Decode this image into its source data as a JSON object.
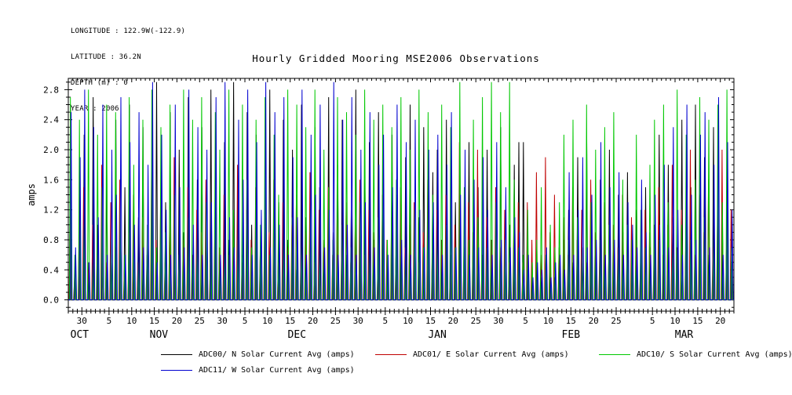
{
  "page": {
    "background": "#ffffff"
  },
  "header": {
    "longitude": "LONGITUDE : 122.9W(-122.9)",
    "latitude": "LATITUDE : 36.2N",
    "depth": "DEPTH (m) : 0",
    "year": "YEAR : 2006"
  },
  "title": "Hourly Gridded Mooring MSE2006 Observations",
  "chart_data": {
    "type": "line",
    "title": "Hourly Gridded Mooring MSE2006 Observations",
    "xlabel": "",
    "ylabel": "amps",
    "ylim": [
      -0.15,
      2.95
    ],
    "yticks": [
      0.0,
      0.4,
      0.8,
      1.2,
      1.6,
      2.0,
      2.4,
      2.8
    ],
    "ytick_labels": [
      "0.0",
      "0.4",
      "0.8",
      "1.2",
      "1.6",
      "2.0",
      "2.4",
      "2.8"
    ],
    "grid": false,
    "legend_position": "bottom",
    "x_domain_days": [
      0,
      147
    ],
    "x_axis_note": "daily solar spikes, late OCT through MAR, year label 2006",
    "xticks": [
      {
        "day": 3,
        "label": "30"
      },
      {
        "day": 9,
        "label": "5"
      },
      {
        "day": 14,
        "label": "10"
      },
      {
        "day": 19,
        "label": "15"
      },
      {
        "day": 24,
        "label": "20"
      },
      {
        "day": 29,
        "label": "25"
      },
      {
        "day": 34,
        "label": "30"
      },
      {
        "day": 39,
        "label": "5"
      },
      {
        "day": 44,
        "label": "10"
      },
      {
        "day": 49,
        "label": "15"
      },
      {
        "day": 54,
        "label": "20"
      },
      {
        "day": 59,
        "label": "25"
      },
      {
        "day": 64,
        "label": "30"
      },
      {
        "day": 70,
        "label": "5"
      },
      {
        "day": 75,
        "label": "10"
      },
      {
        "day": 80,
        "label": "15"
      },
      {
        "day": 85,
        "label": "20"
      },
      {
        "day": 90,
        "label": "25"
      },
      {
        "day": 95,
        "label": "30"
      },
      {
        "day": 101,
        "label": "5"
      },
      {
        "day": 106,
        "label": "10"
      },
      {
        "day": 111,
        "label": "15"
      },
      {
        "day": 116,
        "label": "20"
      },
      {
        "day": 121,
        "label": "25"
      },
      {
        "day": 129,
        "label": "5"
      },
      {
        "day": 134,
        "label": "10"
      },
      {
        "day": 139,
        "label": "15"
      },
      {
        "day": 144,
        "label": "20"
      }
    ],
    "months": [
      {
        "label": "OCT",
        "center_day": 2.5
      },
      {
        "label": "NOV",
        "center_day": 20
      },
      {
        "label": "DEC",
        "center_day": 50.5
      },
      {
        "label": "JAN",
        "center_day": 81.5
      },
      {
        "label": "FEB",
        "center_day": 111
      },
      {
        "label": "MAR",
        "center_day": 136
      }
    ],
    "series": [
      {
        "name": "ADC00/ N Solar Current Avg (amps)",
        "color": "#000000",
        "daily_peaks": [
          2.6,
          0.4,
          1.7,
          2.2,
          0.5,
          2.7,
          1.0,
          0.3,
          1.8,
          0.6,
          2.4,
          0.8,
          1.5,
          2.6,
          0.4,
          1.1,
          2.3,
          0.7,
          1.9,
          2.9,
          0.5,
          1.3,
          2.5,
          0.6,
          2.0,
          0.9,
          2.7,
          0.4,
          1.6,
          2.3,
          0.7,
          2.8,
          1.2,
          0.5,
          2.1,
          0.8,
          2.9,
          1.4,
          0.6,
          2.5,
          1.0,
          2.2,
          0.5,
          1.7,
          2.8,
          0.6,
          1.3,
          2.4,
          0.8,
          2.0,
          0.4,
          2.6,
          1.1,
          0.7,
          2.3,
          1.5,
          0.5,
          2.7,
          0.9,
          1.8,
          2.4,
          0.6,
          1.2,
          2.8,
          0.5,
          1.6,
          2.1,
          0.8,
          2.5,
          1.0,
          0.5,
          2.2,
          1.4,
          0.6,
          1.9,
          2.6,
          0.7,
          1.1,
          2.3,
          0.5,
          1.7,
          2.0,
          0.8,
          2.4,
          0.6,
          1.3,
          1.9,
          0.5,
          2.1,
          0.9,
          1.5,
          0.6,
          2.0,
          0.8,
          1.2,
          2.3,
          0.5,
          1.0,
          1.8,
          2.1,
          2.1,
          0.4,
          0.3,
          0.5,
          0.3,
          0.6,
          0.4,
          0.3,
          0.5,
          0.8,
          1.2,
          0.5,
          1.9,
          0.7,
          2.1,
          1.0,
          0.6,
          1.6,
          0.8,
          2.0,
          0.5,
          1.4,
          0.9,
          1.7,
          0.6,
          1.2,
          0.8,
          1.5,
          0.7,
          1.0,
          2.2,
          0.6,
          1.8,
          1.1,
          0.7,
          2.4,
          0.9,
          1.5,
          2.6,
          0.8,
          1.9,
          0.6,
          2.3,
          1.2,
          0.8,
          2.0,
          0.5
        ]
      },
      {
        "name": "ADC01/ E Solar Current Avg (amps)",
        "color": "#c00000",
        "daily_peaks": [
          1.2,
          0.3,
          0.8,
          1.5,
          0.4,
          1.0,
          0.6,
          1.8,
          0.5,
          1.3,
          0.7,
          1.6,
          0.4,
          0.9,
          1.4,
          0.5,
          1.1,
          0.6,
          1.7,
          0.8,
          1.3,
          0.5,
          1.0,
          1.9,
          0.4,
          0.8,
          1.5,
          0.6,
          1.2,
          0.9,
          1.6,
          0.5,
          1.1,
          0.7,
          1.4,
          0.6,
          1.0,
          1.8,
          0.5,
          1.2,
          0.8,
          1.5,
          0.6,
          1.1,
          0.9,
          1.6,
          0.5,
          1.3,
          0.7,
          1.0,
          1.4,
          0.6,
          0.9,
          1.7,
          0.5,
          1.2,
          0.8,
          1.5,
          0.6,
          1.1,
          0.7,
          1.3,
          0.5,
          1.0,
          1.6,
          0.6,
          1.2,
          0.9,
          0.5,
          1.4,
          0.8,
          1.1,
          0.6,
          1.5,
          0.7,
          1.0,
          1.3,
          0.5,
          0.9,
          1.6,
          0.6,
          1.2,
          0.8,
          1.4,
          0.5,
          1.0,
          2.1,
          0.7,
          1.3,
          0.9,
          2.0,
          0.6,
          1.1,
          0.8,
          1.5,
          0.7,
          1.2,
          0.5,
          0.9,
          1.3,
          0.5,
          1.3,
          0.8,
          1.7,
          0.6,
          1.9,
          0.9,
          1.4,
          0.7,
          1.1,
          0.6,
          1.5,
          0.8,
          1.2,
          0.5,
          1.6,
          0.9,
          0.7,
          1.3,
          0.6,
          1.0,
          0.7,
          1.4,
          0.6,
          1.1,
          0.8,
          0.5,
          1.2,
          0.9,
          0.7,
          1.5,
          0.6,
          1.0,
          1.8,
          0.7,
          1.2,
          0.8,
          2.0,
          0.6,
          1.4,
          0.9,
          1.6,
          0.7,
          1.1,
          2.0,
          0.8,
          1.2
        ]
      },
      {
        "name": "ADC10/ S Solar Current Avg (amps)",
        "color": "#00c800",
        "daily_peaks": [
          2.7,
          0.6,
          2.4,
          1.0,
          2.8,
          0.5,
          2.2,
          1.5,
          2.6,
          0.8,
          2.5,
          1.2,
          0.6,
          2.7,
          1.8,
          0.5,
          2.4,
          1.0,
          2.8,
          0.7,
          2.3,
          0.9,
          2.6,
          1.4,
          0.6,
          2.8,
          1.1,
          2.4,
          0.8,
          2.7,
          1.3,
          0.7,
          2.5,
          2.0,
          0.6,
          2.8,
          1.2,
          0.8,
          2.6,
          1.6,
          0.7,
          2.4,
          1.0,
          2.7,
          0.6,
          2.2,
          1.4,
          0.8,
          2.8,
          1.1,
          2.6,
          0.7,
          2.3,
          1.2,
          2.8,
          0.6,
          2.0,
          1.5,
          0.8,
          2.7,
          1.0,
          2.5,
          0.7,
          2.2,
          1.3,
          2.8,
          0.6,
          2.4,
          1.1,
          2.6,
          0.8,
          2.3,
          1.6,
          2.7,
          0.6,
          2.0,
          1.2,
          2.8,
          0.7,
          2.5,
          1.4,
          0.8,
          2.6,
          1.0,
          2.3,
          0.7,
          2.9,
          1.5,
          0.8,
          2.4,
          1.1,
          2.7,
          0.7,
          2.9,
          1.3,
          2.5,
          0.8,
          2.9,
          1.6,
          0.7,
          0.6,
          1.2,
          0.5,
          0.8,
          1.5,
          0.6,
          1.0,
          0.7,
          1.3,
          2.2,
          0.8,
          2.4,
          1.1,
          0.7,
          2.6,
          1.3,
          2.0,
          0.8,
          2.3,
          1.0,
          2.5,
          0.7,
          1.6,
          1.0,
          0.8,
          2.2,
          1.2,
          0.7,
          1.8,
          2.4,
          0.8,
          2.6,
          1.3,
          0.7,
          2.8,
          1.0,
          2.2,
          0.8,
          1.6,
          2.7,
          1.1,
          2.4,
          0.8,
          2.6,
          1.3,
          2.8,
          0.7
        ]
      },
      {
        "name": "ADC11/ W Solar Current Avg (amps)",
        "color": "#0000d0",
        "daily_peaks": [
          2.5,
          0.7,
          1.9,
          2.8,
          0.5,
          2.3,
          1.1,
          2.6,
          0.6,
          2.0,
          1.4,
          2.7,
          0.6,
          2.1,
          1.0,
          2.5,
          0.7,
          1.8,
          2.9,
          0.5,
          2.2,
          1.2,
          0.6,
          2.6,
          1.5,
          0.7,
          2.8,
          1.0,
          2.3,
          0.6,
          2.0,
          1.3,
          2.7,
          0.6,
          2.9,
          1.1,
          0.7,
          2.4,
          1.6,
          2.8,
          0.6,
          2.1,
          1.2,
          2.9,
          0.7,
          2.5,
          1.0,
          2.7,
          0.6,
          1.9,
          1.1,
          2.8,
          0.6,
          2.2,
          1.4,
          2.6,
          0.7,
          1.2,
          2.9,
          0.6,
          2.4,
          1.0,
          2.7,
          0.6,
          2.0,
          1.3,
          2.5,
          0.7,
          1.8,
          2.2,
          0.6,
          1.5,
          2.6,
          0.8,
          2.1,
          0.6,
          2.4,
          1.2,
          0.7,
          2.0,
          1.3,
          2.2,
          0.6,
          1.8,
          2.5,
          0.7,
          1.4,
          2.0,
          0.6,
          1.6,
          0.7,
          1.9,
          1.2,
          0.6,
          2.1,
          0.8,
          1.5,
          0.7,
          1.1,
          0.9,
          0.4,
          0.6,
          0.3,
          0.5,
          0.4,
          0.7,
          0.3,
          0.5,
          0.6,
          0.4,
          1.7,
          0.6,
          1.2,
          1.9,
          0.7,
          1.4,
          0.8,
          2.1,
          0.6,
          1.5,
          0.8,
          1.7,
          0.6,
          1.3,
          1.0,
          0.7,
          1.6,
          0.9,
          0.6,
          1.4,
          1.0,
          1.8,
          0.7,
          2.3,
          1.2,
          0.6,
          2.6,
          1.4,
          0.8,
          2.2,
          2.5,
          0.7,
          1.8,
          2.7,
          0.6,
          2.1,
          1.2
        ]
      }
    ]
  }
}
